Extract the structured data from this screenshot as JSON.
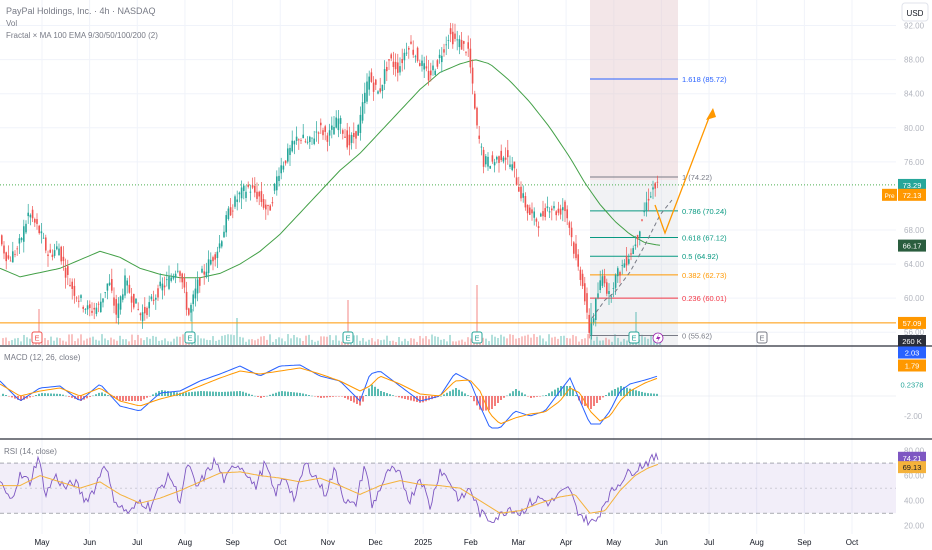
{
  "header": {
    "title": "PayPal Holdings, Inc. · 4h · NASDAQ",
    "vol_label": "Vol",
    "indicators_label": "Fractal × MA 100 EMA 9/30/50/100/200 (2)"
  },
  "currency_button": "USD",
  "colors": {
    "up": "#26a69a",
    "down": "#ef5350",
    "ma": "#43a047",
    "macd": "#2962ff",
    "signal": "#ff9800",
    "rsi": "#7e57c2",
    "rsi_ma": "#f4b23b",
    "fib_1618": "#2962ff",
    "fib_1": "#787b86",
    "fib_0786": "#089981",
    "fib_0618": "#089981",
    "fib_05": "#089981",
    "fib_0382": "#ff9800",
    "fib_0236": "#f23645",
    "fib_0": "#787b86",
    "arrow": "#ff9800",
    "orange_line": "#ff9800",
    "green_dotted": "#4caf50"
  },
  "chart_data": {
    "type": "candlestick",
    "time_axis": [
      "May",
      "Jun",
      "Jul",
      "Aug",
      "Sep",
      "Oct",
      "Nov",
      "Dec",
      "2025",
      "Feb",
      "Mar",
      "Apr",
      "May",
      "Jun",
      "Jul",
      "Aug",
      "Sep",
      "Oct"
    ],
    "price_axis": {
      "ticks": [
        "92.00",
        "88.00",
        "84.00",
        "80.00",
        "76.00",
        "68.00",
        "64.00",
        "60.00",
        "56.00"
      ],
      "range": [
        54.5,
        95.0
      ]
    },
    "price_labels": [
      {
        "value": "73.29",
        "kind": "last"
      },
      {
        "value": "72.13",
        "kind": "pre",
        "prefix": "Pre"
      },
      {
        "value": "66.17",
        "kind": "ma"
      },
      {
        "value": "57.09",
        "kind": "level"
      },
      {
        "value": "260 K",
        "kind": "volume"
      }
    ],
    "fib_levels": [
      {
        "label": "1.618 (85.72)",
        "value": 85.72,
        "color_key": "fib_1618"
      },
      {
        "label": "1 (74.22)",
        "value": 74.22,
        "color_key": "fib_1"
      },
      {
        "label": "0.786 (70.24)",
        "value": 70.24,
        "color_key": "fib_0786"
      },
      {
        "label": "0.618 (67.12)",
        "value": 67.12,
        "color_key": "fib_0618"
      },
      {
        "label": "0.5 (64.92)",
        "value": 64.92,
        "color_key": "fib_05"
      },
      {
        "label": "0.382 (62.73)",
        "value": 62.73,
        "color_key": "fib_0382"
      },
      {
        "label": "0.236 (60.01)",
        "value": 60.01,
        "color_key": "fib_0236"
      },
      {
        "label": "0 (55.62)",
        "value": 55.62,
        "color_key": "fib_0"
      }
    ],
    "horizontal_levels": {
      "dotted_green": 73.29,
      "orange_support": 57.09
    },
    "price_anchors": [
      [
        0,
        67
      ],
      [
        10,
        64.5
      ],
      [
        20,
        66
      ],
      [
        30,
        70
      ],
      [
        40,
        68
      ],
      [
        50,
        65
      ],
      [
        60,
        66
      ],
      [
        70,
        62
      ],
      [
        80,
        60
      ],
      [
        90,
        58.5
      ],
      [
        100,
        59
      ],
      [
        110,
        62
      ],
      [
        118,
        58
      ],
      [
        126,
        62
      ],
      [
        134,
        60
      ],
      [
        142,
        58
      ],
      [
        150,
        59
      ],
      [
        160,
        61
      ],
      [
        170,
        62
      ],
      [
        180,
        64
      ],
      [
        190,
        58
      ],
      [
        200,
        62
      ],
      [
        210,
        64
      ],
      [
        220,
        66
      ],
      [
        230,
        70
      ],
      [
        240,
        72
      ],
      [
        250,
        73
      ],
      [
        260,
        72
      ],
      [
        270,
        70
      ],
      [
        280,
        75
      ],
      [
        290,
        77
      ],
      [
        300,
        79
      ],
      [
        310,
        78
      ],
      [
        320,
        80
      ],
      [
        330,
        79
      ],
      [
        340,
        81
      ],
      [
        350,
        78
      ],
      [
        360,
        80
      ],
      [
        370,
        86
      ],
      [
        380,
        84
      ],
      [
        390,
        88
      ],
      [
        400,
        87
      ],
      [
        410,
        90
      ],
      [
        420,
        88
      ],
      [
        430,
        86
      ],
      [
        440,
        88
      ],
      [
        450,
        91
      ],
      [
        460,
        90
      ],
      [
        470,
        89
      ],
      [
        478,
        80
      ],
      [
        485,
        76
      ],
      [
        495,
        76
      ],
      [
        505,
        77
      ],
      [
        515,
        75
      ],
      [
        520,
        73
      ],
      [
        530,
        70
      ],
      [
        540,
        69
      ],
      [
        550,
        71
      ],
      [
        560,
        70
      ],
      [
        565,
        71
      ],
      [
        570,
        69
      ],
      [
        578,
        64
      ],
      [
        584,
        62
      ],
      [
        590,
        56
      ],
      [
        595,
        58
      ],
      [
        600,
        61
      ],
      [
        605,
        63
      ],
      [
        610,
        60
      ],
      [
        615,
        62
      ],
      [
        620,
        63
      ],
      [
        625,
        64
      ],
      [
        630,
        65
      ],
      [
        635,
        66
      ],
      [
        640,
        68
      ],
      [
        645,
        70
      ],
      [
        650,
        72
      ],
      [
        655,
        73
      ]
    ],
    "ma_anchors": [
      [
        0,
        63.5
      ],
      [
        20,
        62.5
      ],
      [
        40,
        63
      ],
      [
        60,
        63.5
      ],
      [
        80,
        64.5
      ],
      [
        100,
        65.5
      ],
      [
        120,
        64.8
      ],
      [
        140,
        63.5
      ],
      [
        160,
        62.8
      ],
      [
        180,
        62.4
      ],
      [
        200,
        62.4
      ],
      [
        220,
        62.9
      ],
      [
        240,
        64
      ],
      [
        260,
        65.5
      ],
      [
        280,
        67.5
      ],
      [
        300,
        70
      ],
      [
        320,
        72.5
      ],
      [
        340,
        75
      ],
      [
        360,
        77
      ],
      [
        380,
        79.5
      ],
      [
        400,
        82
      ],
      [
        420,
        84.5
      ],
      [
        440,
        86.5
      ],
      [
        460,
        87.5
      ],
      [
        475,
        88
      ],
      [
        490,
        87.5
      ],
      [
        510,
        85.5
      ],
      [
        530,
        83
      ],
      [
        550,
        80
      ],
      [
        570,
        76.5
      ],
      [
        585,
        73.5
      ],
      [
        600,
        71
      ],
      [
        615,
        69
      ],
      [
        630,
        67.5
      ],
      [
        645,
        66.5
      ],
      [
        660,
        66.2
      ]
    ],
    "volume_spikes": [
      [
        37,
        0.6
      ],
      [
        190,
        0.6
      ],
      [
        235,
        0.45
      ],
      [
        348,
        0.75
      ],
      [
        475,
        1.0
      ],
      [
        589,
        0.7
      ],
      [
        635,
        0.55
      ]
    ],
    "event_markers": [
      {
        "x": 37,
        "label": "E",
        "color_key": "down"
      },
      {
        "x": 190,
        "label": "E",
        "color_key": "up"
      },
      {
        "x": 348,
        "label": "E",
        "color_key": "up"
      },
      {
        "x": 477,
        "label": "E",
        "color_key": "up"
      },
      {
        "x": 634,
        "label": "E",
        "color_key": "up"
      },
      {
        "x": 762,
        "label": "E",
        "color_key": "neutral"
      }
    ],
    "macd": {
      "title": "MACD (12, 26, close)",
      "values": [
        "2.03",
        "1.79",
        "0.2378"
      ],
      "axis_ticks": [
        "-2.00"
      ],
      "range": [
        -4.0,
        4.6
      ],
      "macd_anchors": [
        [
          0,
          1.5
        ],
        [
          20,
          -0.5
        ],
        [
          40,
          0.8
        ],
        [
          60,
          1
        ],
        [
          80,
          -0.5
        ],
        [
          100,
          1.2
        ],
        [
          120,
          -1
        ],
        [
          140,
          -1.5
        ],
        [
          160,
          0.3
        ],
        [
          180,
          0.5
        ],
        [
          200,
          1.5
        ],
        [
          220,
          2.2
        ],
        [
          240,
          3
        ],
        [
          260,
          2
        ],
        [
          280,
          3
        ],
        [
          300,
          3.1
        ],
        [
          320,
          2
        ],
        [
          340,
          1.5
        ],
        [
          360,
          -0.5
        ],
        [
          370,
          2.2
        ],
        [
          380,
          2.5
        ],
        [
          400,
          1
        ],
        [
          420,
          -0.5
        ],
        [
          440,
          0
        ],
        [
          455,
          2.3
        ],
        [
          470,
          1.5
        ],
        [
          480,
          -1
        ],
        [
          490,
          -3.2
        ],
        [
          500,
          -3.2
        ],
        [
          515,
          -1.5
        ],
        [
          530,
          -2
        ],
        [
          545,
          -1.5
        ],
        [
          560,
          0.5
        ],
        [
          570,
          1.8
        ],
        [
          580,
          -0.5
        ],
        [
          590,
          -2.8
        ],
        [
          600,
          -2.8
        ],
        [
          610,
          -1.5
        ],
        [
          620,
          0.5
        ],
        [
          630,
          1.2
        ],
        [
          645,
          1.6
        ],
        [
          658,
          2.0
        ]
      ],
      "signal_anchors": [
        [
          0,
          1.2
        ],
        [
          20,
          0
        ],
        [
          40,
          0.5
        ],
        [
          60,
          0.8
        ],
        [
          80,
          0
        ],
        [
          100,
          0.8
        ],
        [
          120,
          -0.5
        ],
        [
          140,
          -1
        ],
        [
          160,
          -0.3
        ],
        [
          180,
          0.2
        ],
        [
          200,
          1
        ],
        [
          220,
          1.8
        ],
        [
          240,
          2.5
        ],
        [
          260,
          2.2
        ],
        [
          280,
          2.5
        ],
        [
          300,
          2.8
        ],
        [
          320,
          2.2
        ],
        [
          340,
          1.5
        ],
        [
          360,
          0.5
        ],
        [
          370,
          1
        ],
        [
          380,
          2
        ],
        [
          400,
          1.2
        ],
        [
          420,
          0.2
        ],
        [
          440,
          0
        ],
        [
          455,
          1.5
        ],
        [
          470,
          1.6
        ],
        [
          480,
          0.5
        ],
        [
          490,
          -1.8
        ],
        [
          500,
          -2.8
        ],
        [
          515,
          -2.2
        ],
        [
          530,
          -1.8
        ],
        [
          545,
          -1.6
        ],
        [
          560,
          -0.5
        ],
        [
          570,
          0.8
        ],
        [
          580,
          0.3
        ],
        [
          590,
          -1.5
        ],
        [
          600,
          -2.5
        ],
        [
          610,
          -2
        ],
        [
          620,
          -0.5
        ],
        [
          630,
          0.5
        ],
        [
          645,
          1.3
        ],
        [
          658,
          1.8
        ]
      ]
    },
    "rsi": {
      "title": "RSI (14, close)",
      "values": [
        "74.21",
        "69.13"
      ],
      "axis_ticks": [
        "80.00",
        "60.00",
        "40.00",
        "20.00"
      ],
      "band": [
        30,
        70
      ],
      "midline": 50,
      "range": [
        15,
        86
      ],
      "rsi_anchors": [
        [
          0,
          55
        ],
        [
          10,
          40
        ],
        [
          20,
          60
        ],
        [
          30,
          55
        ],
        [
          38,
          75
        ],
        [
          46,
          45
        ],
        [
          55,
          60
        ],
        [
          65,
          50
        ],
        [
          75,
          55
        ],
        [
          85,
          40
        ],
        [
          95,
          50
        ],
        [
          105,
          72
        ],
        [
          112,
          45
        ],
        [
          120,
          35
        ],
        [
          130,
          30
        ],
        [
          140,
          40
        ],
        [
          150,
          35
        ],
        [
          160,
          50
        ],
        [
          170,
          60
        ],
        [
          180,
          40
        ],
        [
          188,
          70
        ],
        [
          196,
          50
        ],
        [
          205,
          60
        ],
        [
          215,
          72
        ],
        [
          225,
          55
        ],
        [
          235,
          70
        ],
        [
          245,
          65
        ],
        [
          255,
          50
        ],
        [
          265,
          70
        ],
        [
          275,
          45
        ],
        [
          285,
          60
        ],
        [
          295,
          40
        ],
        [
          305,
          70
        ],
        [
          315,
          60
        ],
        [
          325,
          45
        ],
        [
          335,
          65
        ],
        [
          345,
          40
        ],
        [
          355,
          35
        ],
        [
          365,
          70
        ],
        [
          372,
          35
        ],
        [
          380,
          50
        ],
        [
          390,
          65
        ],
        [
          400,
          60
        ],
        [
          410,
          40
        ],
        [
          420,
          60
        ],
        [
          430,
          35
        ],
        [
          440,
          65
        ],
        [
          450,
          55
        ],
        [
          460,
          40
        ],
        [
          470,
          50
        ],
        [
          480,
          30
        ],
        [
          490,
          25
        ],
        [
          500,
          28
        ],
        [
          510,
          35
        ],
        [
          520,
          30
        ],
        [
          530,
          38
        ],
        [
          540,
          42
        ],
        [
          550,
          38
        ],
        [
          560,
          45
        ],
        [
          570,
          50
        ],
        [
          575,
          35
        ],
        [
          585,
          25
        ],
        [
          595,
          22
        ],
        [
          605,
          40
        ],
        [
          615,
          50
        ],
        [
          625,
          60
        ],
        [
          635,
          65
        ],
        [
          645,
          70
        ],
        [
          655,
          74
        ]
      ],
      "rsi_ma_anchors": [
        [
          0,
          52
        ],
        [
          20,
          52
        ],
        [
          40,
          60
        ],
        [
          60,
          55
        ],
        [
          80,
          50
        ],
        [
          100,
          55
        ],
        [
          120,
          45
        ],
        [
          140,
          38
        ],
        [
          160,
          42
        ],
        [
          180,
          48
        ],
        [
          200,
          55
        ],
        [
          220,
          62
        ],
        [
          240,
          63
        ],
        [
          260,
          60
        ],
        [
          280,
          58
        ],
        [
          300,
          55
        ],
        [
          320,
          58
        ],
        [
          340,
          52
        ],
        [
          360,
          45
        ],
        [
          380,
          52
        ],
        [
          400,
          56
        ],
        [
          420,
          53
        ],
        [
          440,
          52
        ],
        [
          460,
          50
        ],
        [
          480,
          40
        ],
        [
          500,
          30
        ],
        [
          520,
          32
        ],
        [
          540,
          38
        ],
        [
          560,
          43
        ],
        [
          575,
          45
        ],
        [
          590,
          30
        ],
        [
          605,
          32
        ],
        [
          620,
          48
        ],
        [
          635,
          60
        ],
        [
          648,
          66
        ],
        [
          658,
          69
        ]
      ]
    }
  }
}
